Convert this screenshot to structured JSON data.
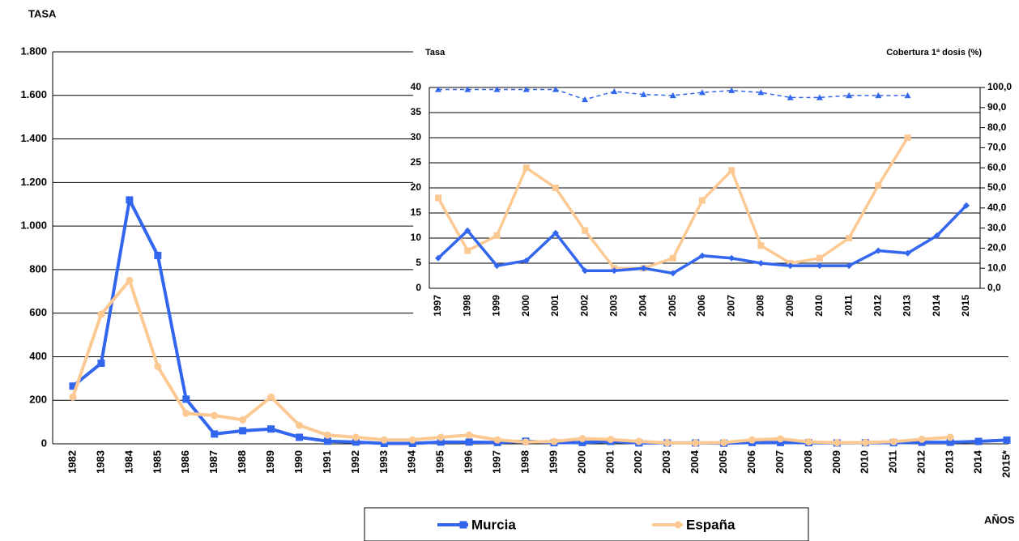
{
  "chart_data": [
    {
      "type": "line",
      "y_label": "TASA",
      "x_label": "AÑOS",
      "grid": true,
      "legend": "bottom",
      "categories": [
        "1982",
        "1983",
        "1984",
        "1985",
        "1986",
        "1987",
        "1988",
        "1989",
        "1990",
        "1991",
        "1992",
        "1993",
        "1994",
        "1995",
        "1996",
        "1997",
        "1998",
        "1999",
        "2000",
        "2001",
        "2002",
        "2003",
        "2004",
        "2005",
        "2006",
        "2007",
        "2008",
        "2009",
        "2010",
        "2011",
        "2012",
        "2013",
        "2014",
        "2015*"
      ],
      "ylim": [
        0,
        1800
      ],
      "yticks": [
        0,
        200,
        400,
        600,
        800,
        {
          "value": 1000,
          "label": "1.000"
        },
        {
          "value": 1200,
          "label": "1.200"
        },
        {
          "value": 1400,
          "label": "1.400"
        },
        {
          "value": 1600,
          "label": "1.600"
        },
        {
          "value": 1800,
          "label": "1.800"
        }
      ],
      "series": [
        {
          "name": "Murcia",
          "color": "#3366ee",
          "marker": "square",
          "values": [
            265,
            370,
            1120,
            865,
            205,
            45,
            60,
            68,
            30,
            12,
            8,
            2,
            2,
            8,
            8,
            6,
            12,
            5,
            6,
            11,
            4,
            4,
            4,
            3,
            6,
            6,
            5,
            4,
            5,
            5,
            7,
            7,
            11,
            17
          ]
        },
        {
          "name": "España",
          "color": "#fcc993",
          "marker": "circle",
          "values": [
            215,
            595,
            750,
            355,
            140,
            130,
            110,
            215,
            85,
            40,
            30,
            18,
            18,
            30,
            40,
            18,
            8,
            11,
            24,
            20,
            11,
            4,
            4,
            6,
            18,
            23,
            9,
            5,
            6,
            10,
            21,
            30,
            null,
            null
          ]
        }
      ]
    },
    {
      "type": "line",
      "y_label": "Tasa",
      "y2_label": "Cobertura 1ª dosis (%)",
      "grid": true,
      "categories": [
        "1997",
        "1998",
        "1999",
        "2000",
        "2001",
        "2002",
        "2003",
        "2004",
        "2005",
        "2006",
        "2007",
        "2008",
        "2009",
        "2010",
        "2011",
        "2012",
        "2013",
        "2014",
        "2015"
      ],
      "ylim": [
        0,
        40
      ],
      "yticks": [
        0,
        5,
        10,
        15,
        20,
        25,
        30,
        35,
        40
      ],
      "y2lim": [
        0,
        100
      ],
      "y2ticks": [
        {
          "value": 0,
          "label": "0,0"
        },
        {
          "value": 10,
          "label": "10,0"
        },
        {
          "value": 20,
          "label": "20,0"
        },
        {
          "value": 30,
          "label": "30,0"
        },
        {
          "value": 40,
          "label": "40,0"
        },
        {
          "value": 50,
          "label": "50,0"
        },
        {
          "value": 60,
          "label": "60,0"
        },
        {
          "value": 70,
          "label": "70,0"
        },
        {
          "value": 80,
          "label": "80,0"
        },
        {
          "value": 90,
          "label": "90,0"
        },
        {
          "value": 100,
          "label": "100,0"
        }
      ],
      "series": [
        {
          "color": "#3366ee",
          "marker": "triangle",
          "axis": "y2",
          "dash": true,
          "values": [
            99,
            99,
            99,
            99,
            99,
            94,
            98,
            96.5,
            96,
            97.5,
            98.5,
            97.5,
            95,
            95,
            96,
            96,
            96,
            null,
            null
          ]
        },
        {
          "color": "#fcc993",
          "marker": "square",
          "values": [
            18,
            7.5,
            10.5,
            24,
            20,
            11.5,
            4,
            4,
            6,
            17.5,
            23.5,
            8.5,
            5,
            6,
            10,
            20.5,
            30,
            null,
            null
          ]
        },
        {
          "color": "#3366ee",
          "marker": "diamond",
          "values": [
            6,
            11.5,
            4.5,
            5.5,
            11,
            3.5,
            3.5,
            4,
            3,
            6.5,
            6,
            5,
            4.5,
            4.5,
            4.5,
            7.5,
            7,
            10.5,
            16.5
          ]
        }
      ]
    }
  ]
}
